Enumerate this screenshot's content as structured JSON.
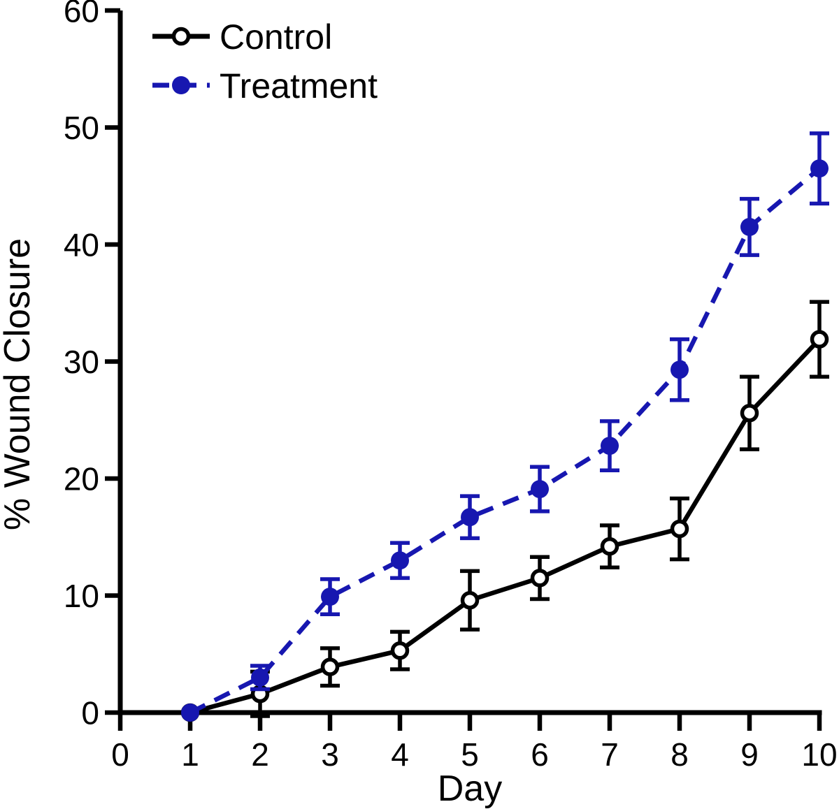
{
  "chart_data": {
    "type": "line",
    "title": "",
    "xlabel": "Day",
    "ylabel": "% Wound Closure",
    "x": [
      1,
      2,
      3,
      4,
      5,
      6,
      7,
      8,
      9,
      10
    ],
    "xlim": [
      0,
      10
    ],
    "ylim": [
      0,
      60
    ],
    "xticks": [
      0,
      1,
      2,
      3,
      4,
      5,
      6,
      7,
      8,
      9,
      10
    ],
    "yticks": [
      0,
      10,
      20,
      30,
      40,
      50,
      60
    ],
    "grid": false,
    "legend_position": "top-left-inside",
    "error_bars": true,
    "series": [
      {
        "name": "Control",
        "color": "#000000",
        "line_style": "solid",
        "marker": "open-circle",
        "values": [
          0,
          1.6,
          3.9,
          5.3,
          9.6,
          11.5,
          14.2,
          15.7,
          25.6,
          31.9
        ],
        "errors": [
          0,
          1.9,
          1.6,
          1.6,
          2.5,
          1.8,
          1.8,
          2.6,
          3.1,
          3.2
        ]
      },
      {
        "name": "Treatment",
        "color": "#1717b0",
        "line_style": "dashed",
        "marker": "filled-circle",
        "values": [
          0,
          3.0,
          9.9,
          13.0,
          16.7,
          19.1,
          22.8,
          29.3,
          41.5,
          46.5
        ],
        "errors": [
          0,
          1.0,
          1.5,
          1.5,
          1.8,
          1.9,
          2.1,
          2.6,
          2.4,
          3.0
        ]
      }
    ]
  }
}
